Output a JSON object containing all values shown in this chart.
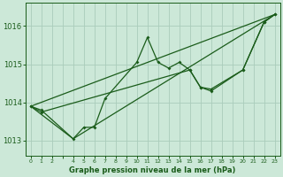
{
  "background_color": "#cce8d8",
  "line_color": "#1a5c1a",
  "grid_color": "#aaccbb",
  "xlabel": "Graphe pression niveau de la mer (hPa)",
  "xlabel_color": "#1a5c1a",
  "tick_color": "#1a5c1a",
  "xlim": [
    -0.5,
    23.5
  ],
  "ylim": [
    1012.6,
    1016.6
  ],
  "yticks": [
    1013,
    1014,
    1015,
    1016
  ],
  "xtick_labels": [
    "0",
    "1",
    "2",
    "",
    "4",
    "5",
    "6",
    "7",
    "8",
    "9",
    "10",
    "11",
    "12",
    "13",
    "14",
    "15",
    "16",
    "17",
    "18",
    "19",
    "20",
    "21",
    "22",
    "23"
  ],
  "line1_x": [
    0,
    1,
    4,
    5,
    6,
    7,
    10,
    11,
    12,
    13,
    14,
    15,
    16,
    17,
    20,
    22,
    23
  ],
  "line1_y": [
    1013.9,
    1013.8,
    1013.05,
    1013.35,
    1013.35,
    1014.1,
    1015.05,
    1015.7,
    1015.05,
    1014.9,
    1015.05,
    1014.85,
    1014.4,
    1014.35,
    1014.85,
    1016.1,
    1016.3
  ],
  "line2_x": [
    0,
    1,
    15,
    16,
    17,
    20,
    22,
    23
  ],
  "line2_y": [
    1013.9,
    1013.75,
    1014.85,
    1014.4,
    1014.3,
    1014.85,
    1016.1,
    1016.3
  ],
  "line3_x": [
    0,
    23
  ],
  "line3_y": [
    1013.9,
    1016.3
  ],
  "line4_x": [
    0,
    4,
    23
  ],
  "line4_y": [
    1013.9,
    1013.05,
    1016.3
  ]
}
